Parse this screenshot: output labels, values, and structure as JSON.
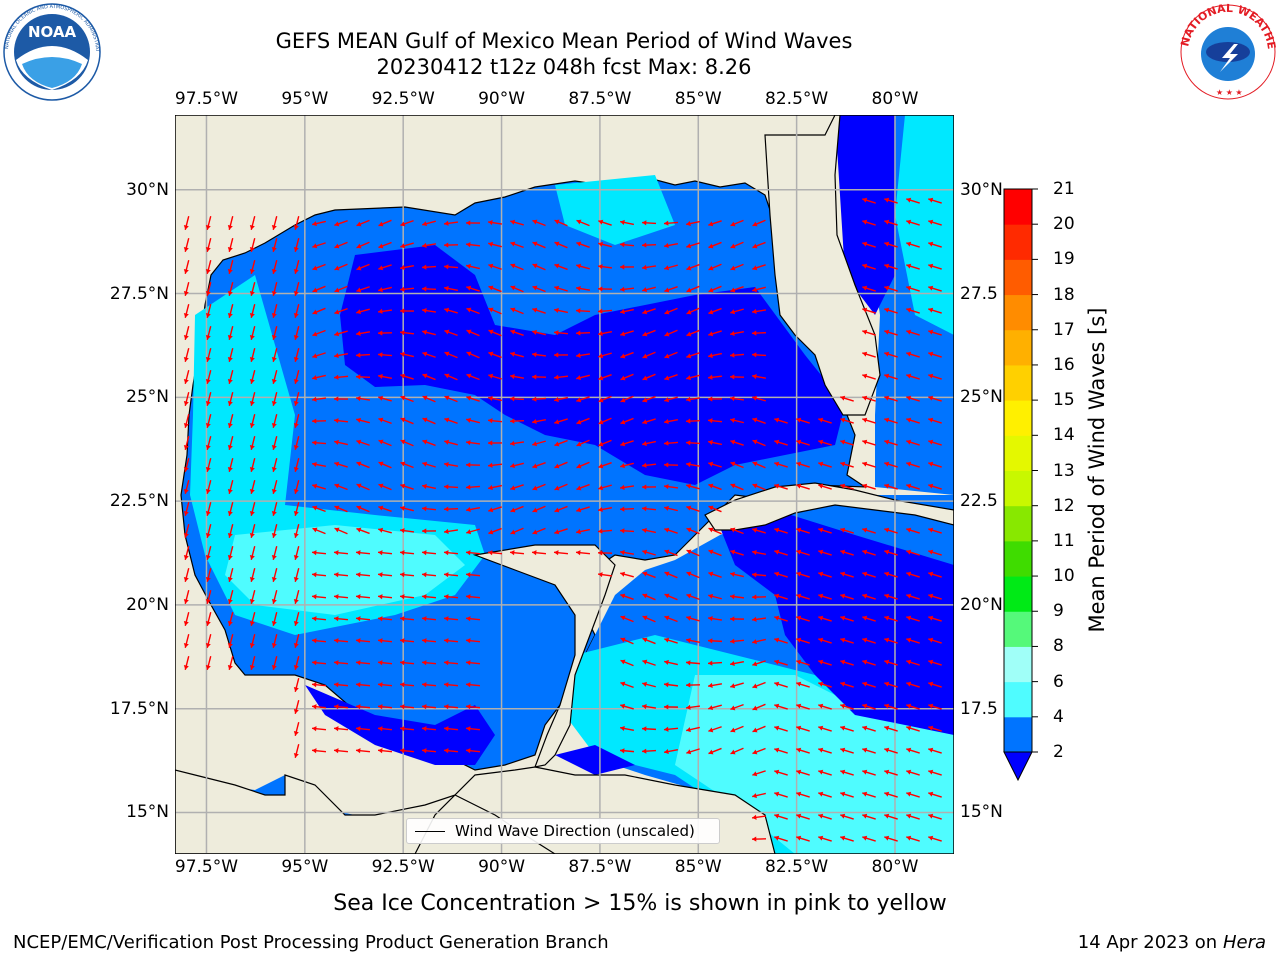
{
  "header": {
    "title_line1": "GEFS MEAN Gulf of Mexico Mean Period of Wind Waves",
    "title_line2": "20230412 t12z 048h fcst   Max: 8.26"
  },
  "logos": {
    "left": {
      "name": "NOAA",
      "ring_text": "NATIONAL OCEANIC AND ATMOSPHERIC ADMINISTRATION · U.S. DEPARTMENT OF COMMERCE",
      "color": "#1d5aa6"
    },
    "right": {
      "name": "NATIONAL WEATHER SERVICE",
      "color": "#e31b23"
    }
  },
  "map": {
    "lon_range": [
      -98.3,
      -78.5
    ],
    "lat_range": [
      14.0,
      31.8
    ],
    "lon_ticks": [
      "97.5°W",
      "95°W",
      "92.5°W",
      "90°W",
      "87.5°W",
      "85°W",
      "82.5°W",
      "80°W"
    ],
    "lat_ticks": [
      "30°N",
      "27.5°N",
      "25°N",
      "22.5°N",
      "20°N",
      "17.5°N",
      "15°N"
    ],
    "right_lat_ticks": [
      "30°N",
      "27.5",
      "25°N",
      "22.5",
      "20°N",
      "17.5",
      "15°N"
    ],
    "land_color": "#eeecdc",
    "grid_color": "#b0b0b0",
    "arrow_color": "#ff0000",
    "legend_label": "Wind Wave Direction (unscaled)"
  },
  "colorbar": {
    "label": "Mean Period of Wind Waves [s]",
    "ticks": [
      "2",
      "4",
      "6",
      "8",
      "9",
      "10",
      "11",
      "12",
      "13",
      "14",
      "15",
      "16",
      "17",
      "18",
      "19",
      "20",
      "21"
    ],
    "levels": [
      2,
      4,
      6,
      8,
      9,
      10,
      11,
      12,
      13,
      14,
      15,
      16,
      17,
      18,
      19,
      20,
      21
    ],
    "colors": [
      "#0074ff",
      "#00e8ff",
      "#4ffcff",
      "#a0fff8",
      "#55f97a",
      "#00ea16",
      "#3fdc00",
      "#88e800",
      "#c8f800",
      "#e4f800",
      "#fff000",
      "#ffd000",
      "#ffb000",
      "#ff8c00",
      "#ff5c00",
      "#ff2a00",
      "#ff0000"
    ],
    "under_color": "#0000ff"
  },
  "footer": {
    "note": "Sea Ice Concentration > 15% is shown in pink to yellow",
    "credit": "NCEP/EMC/Verification Post Processing Product Generation Branch",
    "date": "14 Apr 2023 on ",
    "machine": "Hera"
  }
}
